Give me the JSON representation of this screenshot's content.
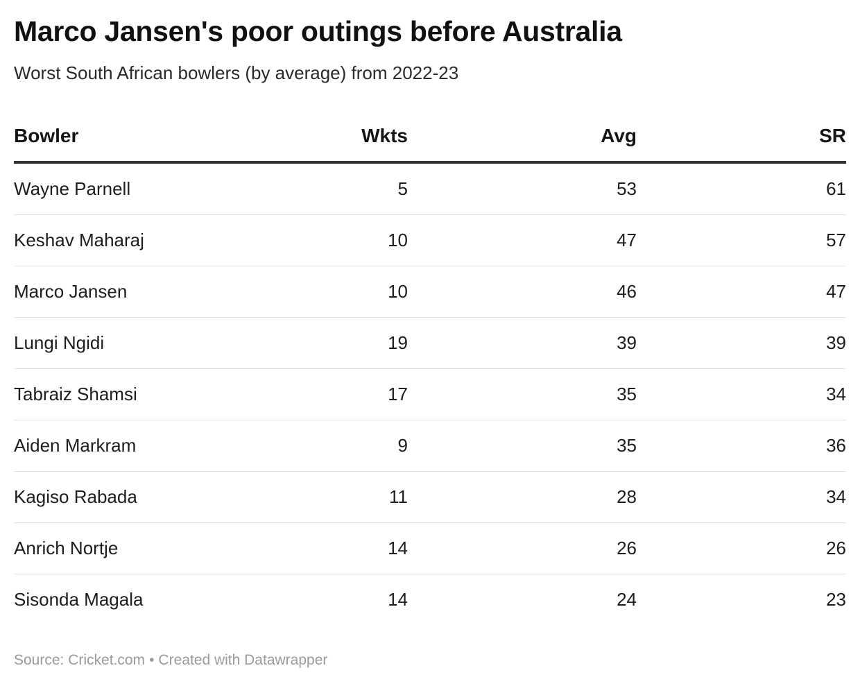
{
  "title": "Marco Jansen's poor outings before Australia",
  "subtitle": "Worst South African bowlers (by average) from 2022-23",
  "columns": {
    "bowler": "Bowler",
    "wkts": "Wkts",
    "avg": "Avg",
    "sr": "SR"
  },
  "chart_data": {
    "type": "table",
    "title": "Marco Jansen's poor outings before Australia",
    "subtitle": "Worst South African bowlers (by average) from 2022-23",
    "columns": [
      "Bowler",
      "Wkts",
      "Avg",
      "SR"
    ],
    "rows": [
      {
        "bowler": "Wayne Parnell",
        "wkts": 5,
        "avg": 53,
        "sr": 61
      },
      {
        "bowler": "Keshav Maharaj",
        "wkts": 10,
        "avg": 47,
        "sr": 57
      },
      {
        "bowler": "Marco Jansen",
        "wkts": 10,
        "avg": 46,
        "sr": 47
      },
      {
        "bowler": "Lungi Ngidi",
        "wkts": 19,
        "avg": 39,
        "sr": 39
      },
      {
        "bowler": "Tabraiz Shamsi",
        "wkts": 17,
        "avg": 35,
        "sr": 34
      },
      {
        "bowler": "Aiden Markram",
        "wkts": 9,
        "avg": 35,
        "sr": 36
      },
      {
        "bowler": "Kagiso Rabada",
        "wkts": 11,
        "avg": 28,
        "sr": 34
      },
      {
        "bowler": "Anrich Nortje",
        "wkts": 14,
        "avg": 26,
        "sr": 26
      },
      {
        "bowler": "Sisonda Magala",
        "wkts": 14,
        "avg": 24,
        "sr": 23
      }
    ]
  },
  "footer": {
    "source": "Source: Cricket.com",
    "separator": "•",
    "credit": "Created with Datawrapper"
  }
}
